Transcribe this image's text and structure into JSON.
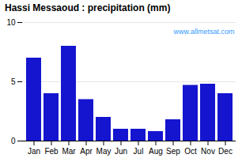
{
  "chart_data": {
    "type": "bar",
    "title": "Hassi Messaoud : precipitation (mm)",
    "categories": [
      "Jan",
      "Feb",
      "Mar",
      "Apr",
      "May",
      "Jun",
      "Jul",
      "Aug",
      "Sep",
      "Oct",
      "Nov",
      "Dec"
    ],
    "values": [
      7.0,
      4.0,
      8.0,
      3.5,
      2.0,
      1.0,
      1.0,
      0.8,
      1.8,
      4.7,
      4.8,
      4.0
    ],
    "color": "#1515d0",
    "ylim": [
      0,
      10
    ],
    "yticks": [
      0,
      5,
      10
    ],
    "grid": true,
    "annotations": [
      {
        "text": "www.allmetsat.com",
        "color": "#3399ff"
      }
    ]
  }
}
